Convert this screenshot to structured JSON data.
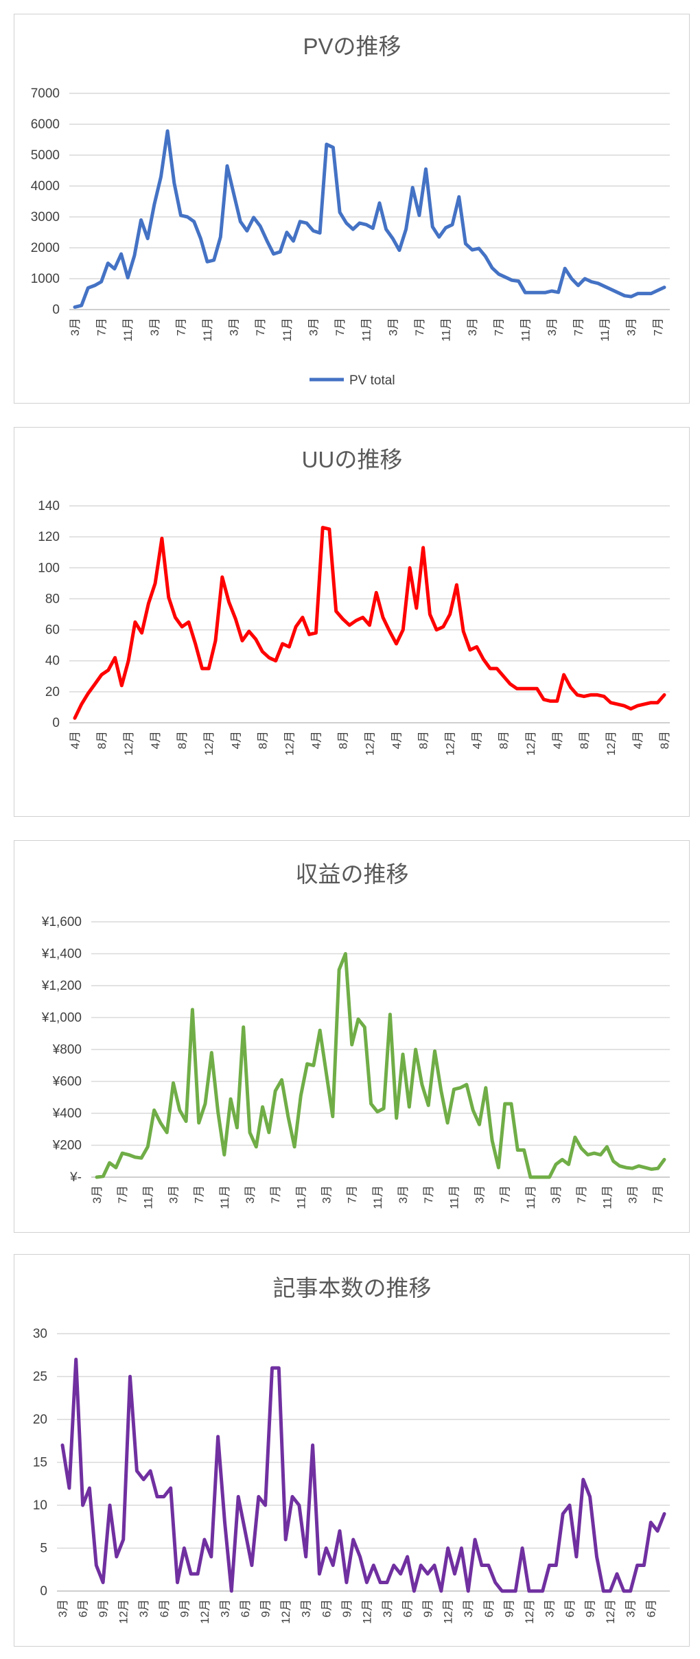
{
  "chart_data": [
    {
      "type": "line",
      "title": "PVの推移",
      "xlabel": "",
      "ylabel": "",
      "ylim": [
        0,
        7000
      ],
      "yticks": [
        0,
        1000,
        2000,
        3000,
        4000,
        5000,
        6000,
        7000
      ],
      "ytick_labels": [
        "0",
        "1000",
        "2000",
        "3000",
        "4000",
        "5000",
        "6000",
        "7000"
      ],
      "grid": true,
      "legend": "bottom",
      "color": "#4472C4",
      "tick_labels": [
        "3月",
        "7月",
        "11月",
        "3月",
        "7月",
        "11月",
        "3月",
        "7月",
        "11月",
        "3月",
        "7月",
        "11月",
        "3月",
        "7月",
        "11月",
        "3月",
        "7月",
        "11月",
        "3月",
        "7月",
        "11月",
        "3月",
        "7月"
      ],
      "tick_every": 4,
      "series": [
        {
          "name": "PV total",
          "values": [
            80,
            130,
            700,
            780,
            900,
            1500,
            1320,
            1800,
            1030,
            1750,
            2900,
            2300,
            3400,
            4300,
            5780,
            4100,
            3050,
            3000,
            2850,
            2300,
            1550,
            1600,
            2350,
            4650,
            3750,
            2850,
            2550,
            2980,
            2700,
            2230,
            1800,
            1870,
            2500,
            2220,
            2850,
            2800,
            2550,
            2480,
            5350,
            5250,
            3150,
            2800,
            2600,
            2800,
            2750,
            2630,
            3450,
            2600,
            2300,
            1920,
            2600,
            3950,
            3050,
            4550,
            2680,
            2350,
            2650,
            2750,
            3650,
            2130,
            1930,
            1980,
            1720,
            1350,
            1150,
            1050,
            950,
            920,
            550,
            550,
            550,
            550,
            600,
            560,
            1330,
            1000,
            780,
            1000,
            900,
            850,
            750,
            650,
            550,
            450,
            420,
            520,
            520,
            520,
            620,
            720
          ]
        }
      ]
    },
    {
      "type": "line",
      "title": "UUの推移",
      "xlabel": "",
      "ylabel": "",
      "ylim": [
        0,
        140
      ],
      "yticks": [
        0,
        20,
        40,
        60,
        80,
        100,
        120,
        140
      ],
      "ytick_labels": [
        "0",
        "20",
        "40",
        "60",
        "80",
        "100",
        "120",
        "140"
      ],
      "grid": true,
      "color": "#FF0000",
      "tick_labels": [
        "4月",
        "8月",
        "12月",
        "4月",
        "8月",
        "12月",
        "4月",
        "8月",
        "12月",
        "4月",
        "8月",
        "12月",
        "4月",
        "8月",
        "12月",
        "4月",
        "8月",
        "12月",
        "4月",
        "8月",
        "12月",
        "4月",
        "8月"
      ],
      "tick_every": 4,
      "series": [
        {
          "values": [
            3,
            12,
            19,
            25,
            31,
            34,
            42,
            24,
            40,
            65,
            58,
            77,
            90,
            119,
            81,
            68,
            62,
            65,
            51,
            35,
            35,
            53,
            94,
            78,
            67,
            53,
            59,
            54,
            46,
            42,
            40,
            51,
            49,
            62,
            68,
            57,
            58,
            126,
            125,
            72,
            67,
            63,
            66,
            68,
            63,
            84,
            68,
            59,
            51,
            60,
            100,
            74,
            113,
            70,
            60,
            62,
            70,
            89,
            59,
            47,
            49,
            41,
            35,
            35,
            30,
            25,
            22,
            22,
            22,
            22,
            15,
            14,
            14,
            31,
            23,
            18,
            17,
            18,
            18,
            17,
            13,
            12,
            11,
            9,
            11,
            12,
            13,
            13,
            18
          ]
        }
      ]
    },
    {
      "type": "line",
      "title": "収益の推移",
      "xlabel": "",
      "ylabel": "",
      "ylim": [
        0,
        1600
      ],
      "yticks": [
        0,
        200,
        400,
        600,
        800,
        1000,
        1200,
        1400,
        1600
      ],
      "ytick_labels": [
        "¥-",
        "¥200",
        "¥400",
        "¥600",
        "¥800",
        "¥1,000",
        "¥1,200",
        "¥1,400",
        "¥1,600"
      ],
      "grid": true,
      "color": "#70AD47",
      "tick_labels": [
        "3月",
        "7月",
        "11月",
        "3月",
        "7月",
        "11月",
        "3月",
        "7月",
        "11月",
        "3月",
        "7月",
        "11月",
        "3月",
        "7月",
        "11月",
        "3月",
        "7月",
        "11月",
        "3月",
        "7月",
        "11月",
        "3月",
        "7月"
      ],
      "tick_every": 4,
      "series": [
        {
          "values": [
            0,
            5,
            90,
            60,
            150,
            140,
            125,
            120,
            190,
            420,
            340,
            280,
            590,
            420,
            350,
            1050,
            340,
            460,
            780,
            410,
            140,
            490,
            310,
            940,
            280,
            190,
            440,
            280,
            540,
            610,
            380,
            190,
            510,
            710,
            700,
            920,
            650,
            380,
            1300,
            1400,
            830,
            990,
            940,
            460,
            410,
            430,
            1020,
            370,
            770,
            440,
            800,
            580,
            450,
            790,
            540,
            340,
            550,
            560,
            580,
            420,
            330,
            560,
            230,
            60,
            460,
            460,
            170,
            170,
            0,
            0,
            0,
            0,
            80,
            110,
            80,
            250,
            180,
            140,
            150,
            140,
            190,
            100,
            70,
            60,
            55,
            70,
            60,
            50,
            55,
            110
          ]
        }
      ]
    },
    {
      "type": "line",
      "title": "記事本数の推移",
      "xlabel": "",
      "ylabel": "",
      "ylim": [
        0,
        30
      ],
      "yticks": [
        0,
        5,
        10,
        15,
        20,
        25,
        30
      ],
      "ytick_labels": [
        "0",
        "5",
        "10",
        "15",
        "20",
        "25",
        "30"
      ],
      "grid": true,
      "color": "#7030A0",
      "tick_labels": [
        "3月",
        "6月",
        "9月",
        "12月",
        "3月",
        "6月",
        "9月",
        "12月",
        "3月",
        "6月",
        "9月",
        "12月",
        "3月",
        "6月",
        "9月",
        "12月",
        "3月",
        "6月",
        "9月",
        "12月",
        "3月",
        "6月",
        "9月",
        "12月",
        "3月",
        "6月",
        "9月",
        "12月",
        "3月",
        "6月"
      ],
      "tick_every": 3,
      "series": [
        {
          "values": [
            17,
            12,
            27,
            10,
            12,
            3,
            1,
            10,
            4,
            6,
            25,
            14,
            13,
            14,
            11,
            11,
            12,
            1,
            5,
            2,
            2,
            6,
            4,
            18,
            8,
            0,
            11,
            7,
            3,
            11,
            10,
            26,
            26,
            6,
            11,
            10,
            4,
            17,
            2,
            5,
            3,
            7,
            1,
            6,
            4,
            1,
            3,
            1,
            1,
            3,
            2,
            4,
            0,
            3,
            2,
            3,
            0,
            5,
            2,
            5,
            0,
            6,
            3,
            3,
            1,
            0,
            0,
            0,
            5,
            0,
            0,
            0,
            3,
            3,
            9,
            10,
            4,
            13,
            11,
            4,
            0,
            0,
            2,
            0,
            0,
            3,
            3,
            8,
            7,
            9
          ]
        }
      ]
    }
  ]
}
